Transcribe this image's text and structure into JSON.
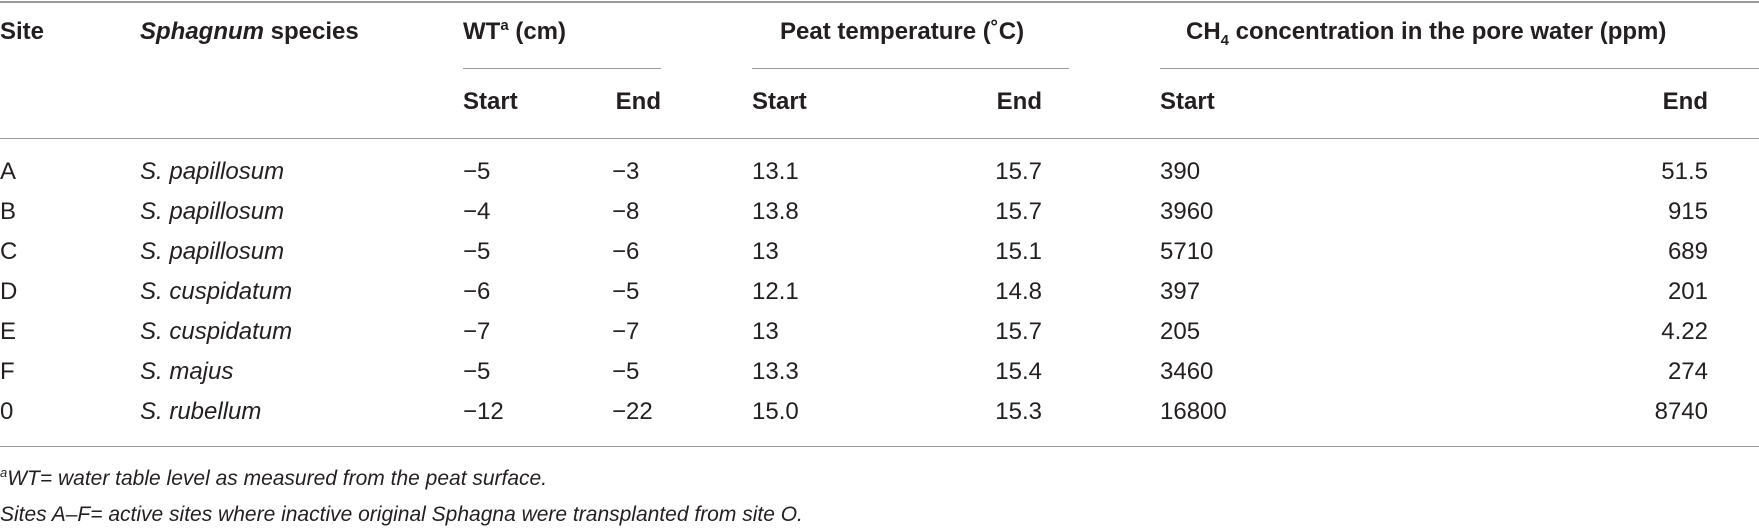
{
  "header": {
    "site": "Site",
    "species_italic": "Sphagnum",
    "species_rest": " species",
    "wt_main": "WT",
    "wt_sup": "a",
    "wt_unit": " (cm)",
    "peat_temp": "Peat temperature (˚C)",
    "ch4_pre": "CH",
    "ch4_sub": "4",
    "ch4_post": " concentration in the pore water (ppm)",
    "start": "Start",
    "end": "End"
  },
  "rows": [
    {
      "site": "A",
      "species": "S. papillosum",
      "wt_start": "−5",
      "wt_end": "−3",
      "temp_start": "13.1",
      "temp_end": "15.7",
      "ch4_start": "390",
      "ch4_end": "51.5"
    },
    {
      "site": "B",
      "species": "S. papillosum",
      "wt_start": "−4",
      "wt_end": "−8",
      "temp_start": "13.8",
      "temp_end": "15.7",
      "ch4_start": "3960",
      "ch4_end": "915"
    },
    {
      "site": "C",
      "species": "S. papillosum",
      "wt_start": "−5",
      "wt_end": "−6",
      "temp_start": "13",
      "temp_end": "15.1",
      "ch4_start": "5710",
      "ch4_end": "689"
    },
    {
      "site": "D",
      "species": "S. cuspidatum",
      "wt_start": "−6",
      "wt_end": "−5",
      "temp_start": "12.1",
      "temp_end": "14.8",
      "ch4_start": "397",
      "ch4_end": "201"
    },
    {
      "site": "E",
      "species": "S. cuspidatum",
      "wt_start": "−7",
      "wt_end": "−7",
      "temp_start": "13",
      "temp_end": "15.7",
      "ch4_start": "205",
      "ch4_end": "4.22"
    },
    {
      "site": "F",
      "species": "S. majus",
      "wt_start": "−5",
      "wt_end": "−5",
      "temp_start": "13.3",
      "temp_end": "15.4",
      "ch4_start": "3460",
      "ch4_end": "274"
    },
    {
      "site": "0",
      "species": "S. rubellum",
      "wt_start": "−12",
      "wt_end": "−22",
      "temp_start": "15.0",
      "temp_end": "15.3",
      "ch4_start": "16800",
      "ch4_end": "8740"
    }
  ],
  "footnotes": {
    "fn1_sup": "a",
    "fn1_text": "WT= water table level as measured from the peat surface.",
    "fn2_text": "Sites A–F= active sites where inactive original Sphagna were transplanted from site O."
  }
}
